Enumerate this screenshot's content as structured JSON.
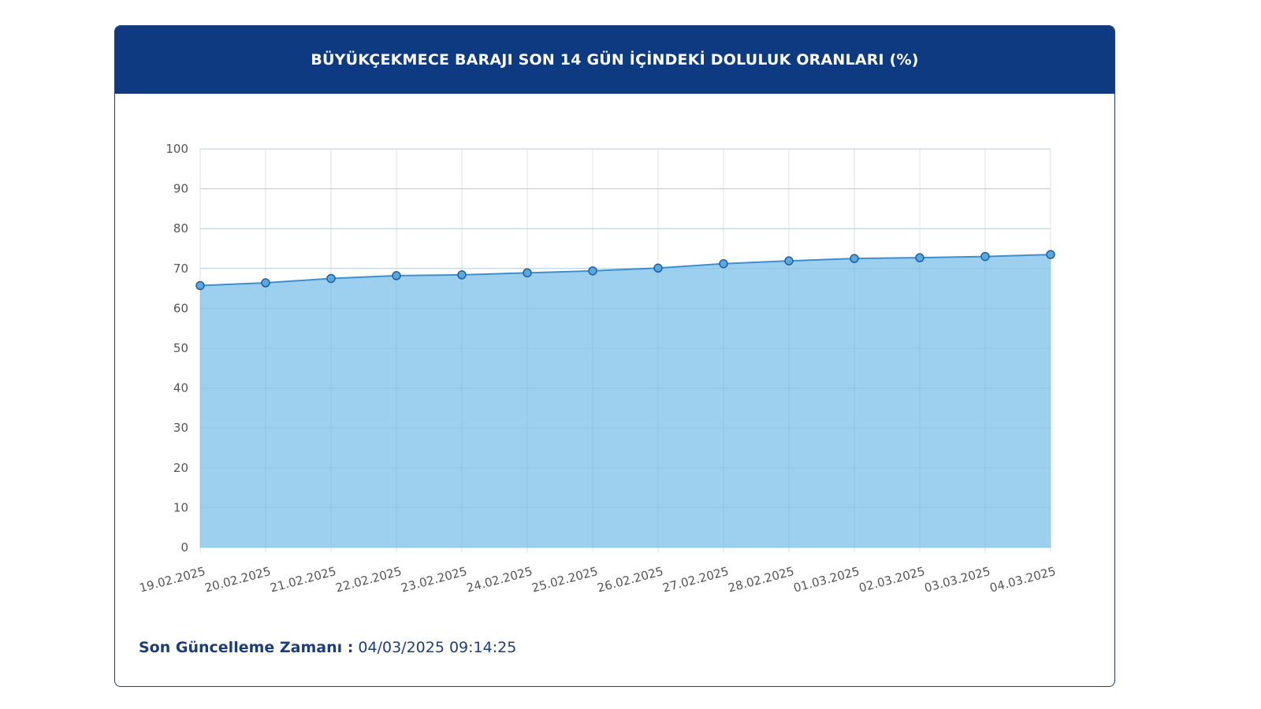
{
  "header": {
    "title": "BÜYÜKÇEKMECE BARAJI SON 14 GÜN İÇİNDEKİ DOLULUK ORANLARI (%)"
  },
  "footer": {
    "label": "Son Güncelleme Zamanı :",
    "value": "04/03/2025 09:14:25"
  },
  "colors": {
    "header_bg": "#0e3a82",
    "area_fill": "#9dd0ee",
    "line": "#3e8fd0",
    "text_dark_blue": "#1c3d7c"
  },
  "chart_data": {
    "type": "area",
    "title": "BÜYÜKÇEKMECE BARAJI SON 14 GÜN İÇİNDEKİ DOLULUK ORANLARI (%)",
    "categories": [
      "19.02.2025",
      "20.02.2025",
      "21.02.2025",
      "22.02.2025",
      "23.02.2025",
      "24.02.2025",
      "25.02.2025",
      "26.02.2025",
      "27.02.2025",
      "28.02.2025",
      "01.03.2025",
      "02.03.2025",
      "03.03.2025",
      "04.03.2025"
    ],
    "values": [
      65.7,
      66.4,
      67.5,
      68.2,
      68.4,
      68.9,
      69.4,
      70.1,
      71.2,
      71.9,
      72.5,
      72.7,
      73.0,
      73.5
    ],
    "ylim": [
      0,
      100
    ],
    "yticks": [
      0,
      10,
      20,
      30,
      40,
      50,
      60,
      70,
      80,
      90,
      100
    ],
    "grid": true,
    "legend": "none"
  }
}
